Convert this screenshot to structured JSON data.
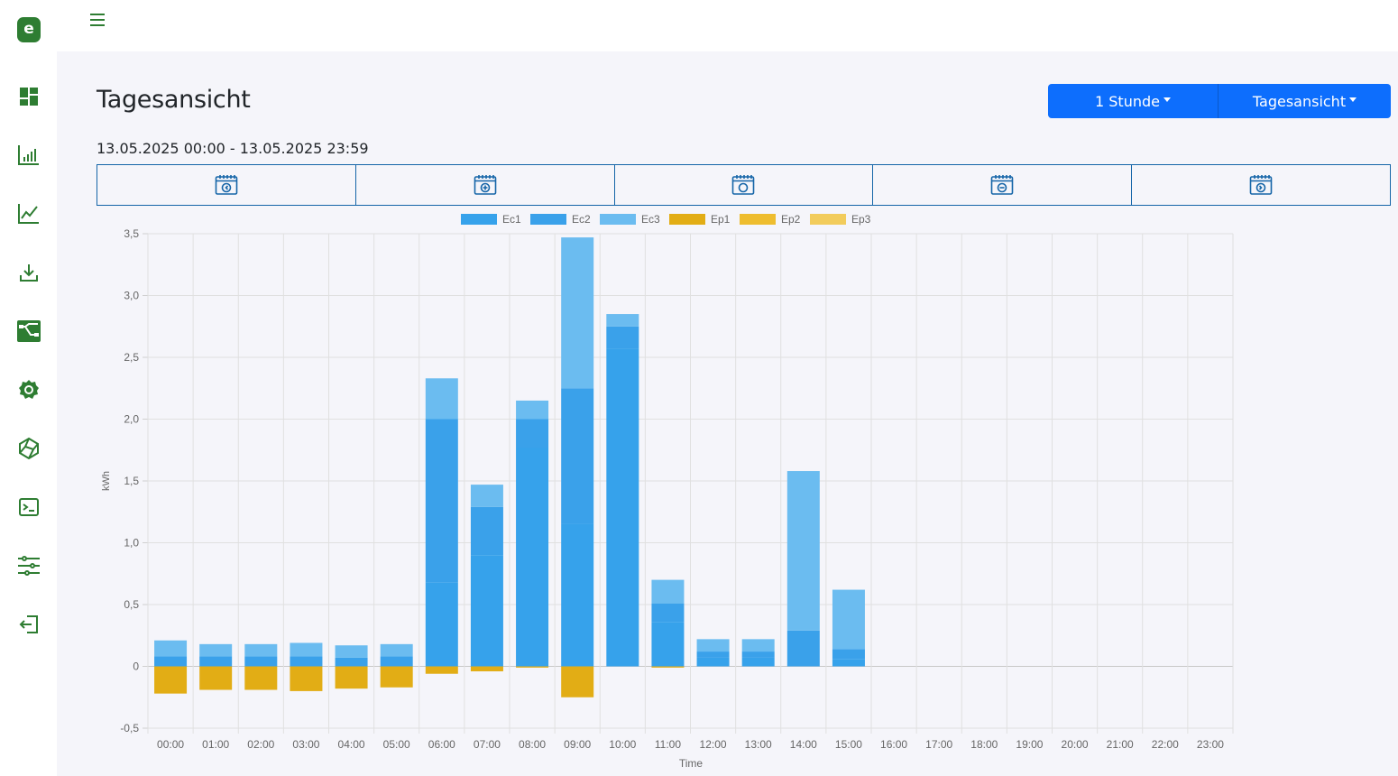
{
  "app": {
    "logo_text": "e"
  },
  "sidebar": {
    "items": [
      {
        "name": "dashboard-icon"
      },
      {
        "name": "bar-chart-icon"
      },
      {
        "name": "line-chart-icon"
      },
      {
        "name": "download-icon"
      },
      {
        "name": "flow-icon"
      },
      {
        "name": "grafana-icon"
      },
      {
        "name": "polyhedron-icon"
      },
      {
        "name": "terminal-icon"
      },
      {
        "name": "sliders-icon"
      },
      {
        "name": "logout-icon"
      }
    ]
  },
  "header": {
    "title": "Tagesansicht",
    "date_range": "13.05.2025 00:00 - 13.05.2025 23:59",
    "interval_button": "1 Stunde",
    "view_button": "Tagesansicht"
  },
  "date_nav": {
    "items": [
      {
        "name": "previous-period-icon"
      },
      {
        "name": "add-period-icon"
      },
      {
        "name": "current-period-icon"
      },
      {
        "name": "remove-period-icon"
      },
      {
        "name": "next-period-icon"
      }
    ]
  },
  "colors": {
    "brand": "#2e7d32",
    "button": "#0d6efd",
    "ec1": "#36a2eb",
    "ec2": "#3aa1ea",
    "ec3": "#6bbcf0",
    "ep1": "#e2ad15",
    "ep2": "#eebd2f",
    "ep3": "#f2cc5c"
  },
  "chart_data": {
    "type": "bar",
    "stacked": true,
    "xlabel": "Time",
    "ylabel": "kWh",
    "ylim": [
      -0.5,
      3.5
    ],
    "yticks": [
      "-0,5",
      "0",
      "0,5",
      "1,0",
      "1,5",
      "2,0",
      "2,5",
      "3,0",
      "3,5"
    ],
    "ytick_values": [
      -0.5,
      0,
      0.5,
      1.0,
      1.5,
      2.0,
      2.5,
      3.0,
      3.5
    ],
    "legend_position": "top",
    "grid": true,
    "categories": [
      "00:00",
      "01:00",
      "02:00",
      "03:00",
      "04:00",
      "05:00",
      "06:00",
      "07:00",
      "08:00",
      "09:00",
      "10:00",
      "11:00",
      "12:00",
      "13:00",
      "14:00",
      "15:00",
      "16:00",
      "17:00",
      "18:00",
      "19:00",
      "20:00",
      "21:00",
      "22:00",
      "23:00"
    ],
    "series": [
      {
        "name": "Ec1",
        "values": [
          0,
          0,
          0,
          0,
          0,
          0,
          0.68,
          0.9,
          1.77,
          1.15,
          2.57,
          0.36,
          0.07,
          0.07,
          0,
          0.06,
          0,
          0,
          0,
          0,
          0,
          0,
          0,
          0
        ]
      },
      {
        "name": "Ec2",
        "values": [
          0.08,
          0.08,
          0.08,
          0.08,
          0.07,
          0.08,
          1.32,
          0.39,
          0.23,
          1.1,
          0.18,
          0.15,
          0.05,
          0.05,
          0.29,
          0.08,
          0,
          0,
          0,
          0,
          0,
          0,
          0,
          0
        ]
      },
      {
        "name": "Ec3",
        "values": [
          0.13,
          0.1,
          0.1,
          0.11,
          0.1,
          0.1,
          0.33,
          0.18,
          0.15,
          1.22,
          0.1,
          0.19,
          0.1,
          0.1,
          1.29,
          0.48,
          0,
          0,
          0,
          0,
          0,
          0,
          0,
          0
        ]
      },
      {
        "name": "Ep1",
        "values": [
          -0.22,
          -0.19,
          -0.19,
          -0.2,
          -0.18,
          -0.17,
          -0.06,
          -0.04,
          -0.01,
          -0.25,
          0,
          -0.01,
          0,
          0,
          0,
          0,
          0,
          0,
          0,
          0,
          0,
          0,
          0,
          0
        ]
      },
      {
        "name": "Ep2",
        "values": [
          0,
          0,
          0,
          0,
          0,
          0,
          0,
          0,
          0,
          0,
          0,
          0,
          0,
          0,
          0,
          0,
          0,
          0,
          0,
          0,
          0,
          0,
          0,
          0
        ]
      },
      {
        "name": "Ep3",
        "values": [
          0,
          0,
          0,
          0,
          0,
          0,
          0,
          0,
          0,
          0,
          0,
          0,
          0,
          0,
          0,
          0,
          0,
          0,
          0,
          0,
          0,
          0,
          0,
          0
        ]
      }
    ]
  }
}
